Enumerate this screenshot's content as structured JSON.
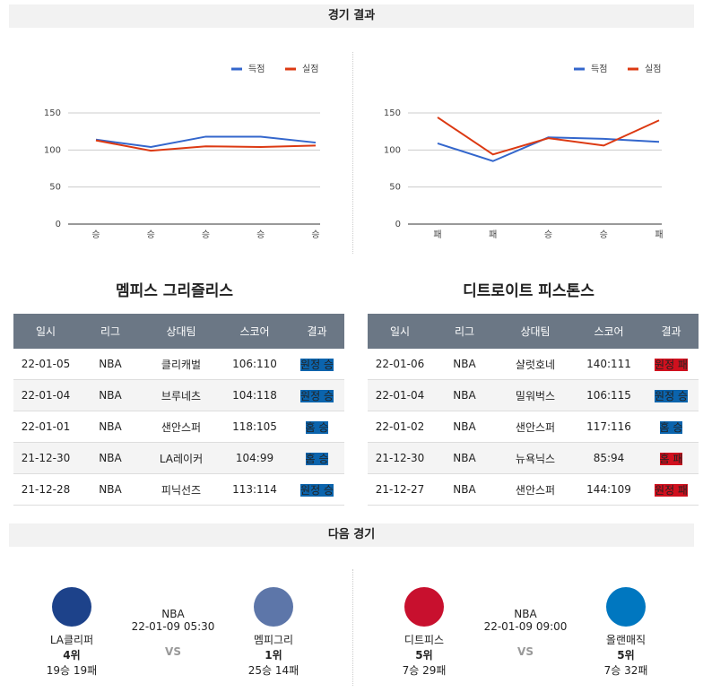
{
  "header": {
    "title": "경기 결과"
  },
  "chart_data": [
    {
      "type": "line",
      "categories": [
        "승",
        "승",
        "승",
        "승",
        "승"
      ],
      "series": [
        {
          "name": "득점",
          "color": "#3366cc",
          "values": [
            114,
            104,
            118,
            118,
            110
          ]
        },
        {
          "name": "실점",
          "color": "#dc3912",
          "values": [
            113,
            99,
            105,
            104,
            106
          ]
        }
      ],
      "ylim": [
        0,
        150
      ],
      "yticks": [
        0,
        50,
        100,
        150
      ],
      "grid": true,
      "legend": "top-right"
    },
    {
      "type": "line",
      "categories": [
        "패",
        "패",
        "승",
        "승",
        "패"
      ],
      "series": [
        {
          "name": "득점",
          "color": "#3366cc",
          "values": [
            109,
            85,
            117,
            115,
            111
          ]
        },
        {
          "name": "실점",
          "color": "#dc3912",
          "values": [
            144,
            94,
            116,
            106,
            140
          ]
        }
      ],
      "ylim": [
        0,
        150
      ],
      "yticks": [
        0,
        50,
        100,
        150
      ],
      "grid": true,
      "legend": "top-right"
    }
  ],
  "panels": [
    {
      "team": "멤피스 그리즐리스",
      "table": {
        "columns": [
          "일시",
          "리그",
          "상대팀",
          "스코어",
          "결과"
        ],
        "rows": [
          [
            "22-01-05",
            "NBA",
            "클리캐벌",
            "106:110",
            {
              "label": "원정 승",
              "color": "#0b64ad"
            }
          ],
          [
            "22-01-04",
            "NBA",
            "브루네츠",
            "104:118",
            {
              "label": "원정 승",
              "color": "#0b64ad"
            }
          ],
          [
            "22-01-01",
            "NBA",
            "샌안스퍼",
            "118:105",
            {
              "label": "홈 승",
              "color": "#0b64ad"
            }
          ],
          [
            "21-12-30",
            "NBA",
            "LA레이커",
            "104:99",
            {
              "label": "홈 승",
              "color": "#0b64ad"
            }
          ],
          [
            "21-12-28",
            "NBA",
            "피닉선즈",
            "113:114",
            {
              "label": "원정 승",
              "color": "#0b64ad"
            }
          ]
        ]
      }
    },
    {
      "team": "디트로이트 피스톤스",
      "table": {
        "columns": [
          "일시",
          "리그",
          "상대팀",
          "스코어",
          "결과"
        ],
        "rows": [
          [
            "22-01-06",
            "NBA",
            "샬럿호네",
            "140:111",
            {
              "label": "원정 패",
              "color": "#d0101e"
            }
          ],
          [
            "22-01-04",
            "NBA",
            "밀워벅스",
            "106:115",
            {
              "label": "원정 승",
              "color": "#0b64ad"
            }
          ],
          [
            "22-01-02",
            "NBA",
            "샌안스퍼",
            "117:116",
            {
              "label": "홈 승",
              "color": "#0b64ad"
            }
          ],
          [
            "21-12-30",
            "NBA",
            "뉴욕닉스",
            "85:94",
            {
              "label": "홈 패",
              "color": "#d0101e"
            }
          ],
          [
            "21-12-27",
            "NBA",
            "샌안스퍼",
            "144:109",
            {
              "label": "원정 패",
              "color": "#d0101e"
            }
          ]
        ]
      }
    }
  ],
  "next": {
    "title": "다음 경기",
    "games": [
      {
        "home": {
          "name": "LA클리퍼",
          "rank": "4위",
          "record": "19승 19패"
        },
        "league": "NBA",
        "time": "22-01-09 05:30",
        "vs": "VS",
        "away": {
          "name": "멤피그리",
          "rank": "1위",
          "record": "25승 14패"
        }
      },
      {
        "home": {
          "name": "디트피스",
          "rank": "5위",
          "record": "7승 29패"
        },
        "league": "NBA",
        "time": "22-01-09 09:00",
        "vs": "VS",
        "away": {
          "name": "올랜매직",
          "rank": "5위",
          "record": "7승 32패"
        }
      }
    ]
  }
}
